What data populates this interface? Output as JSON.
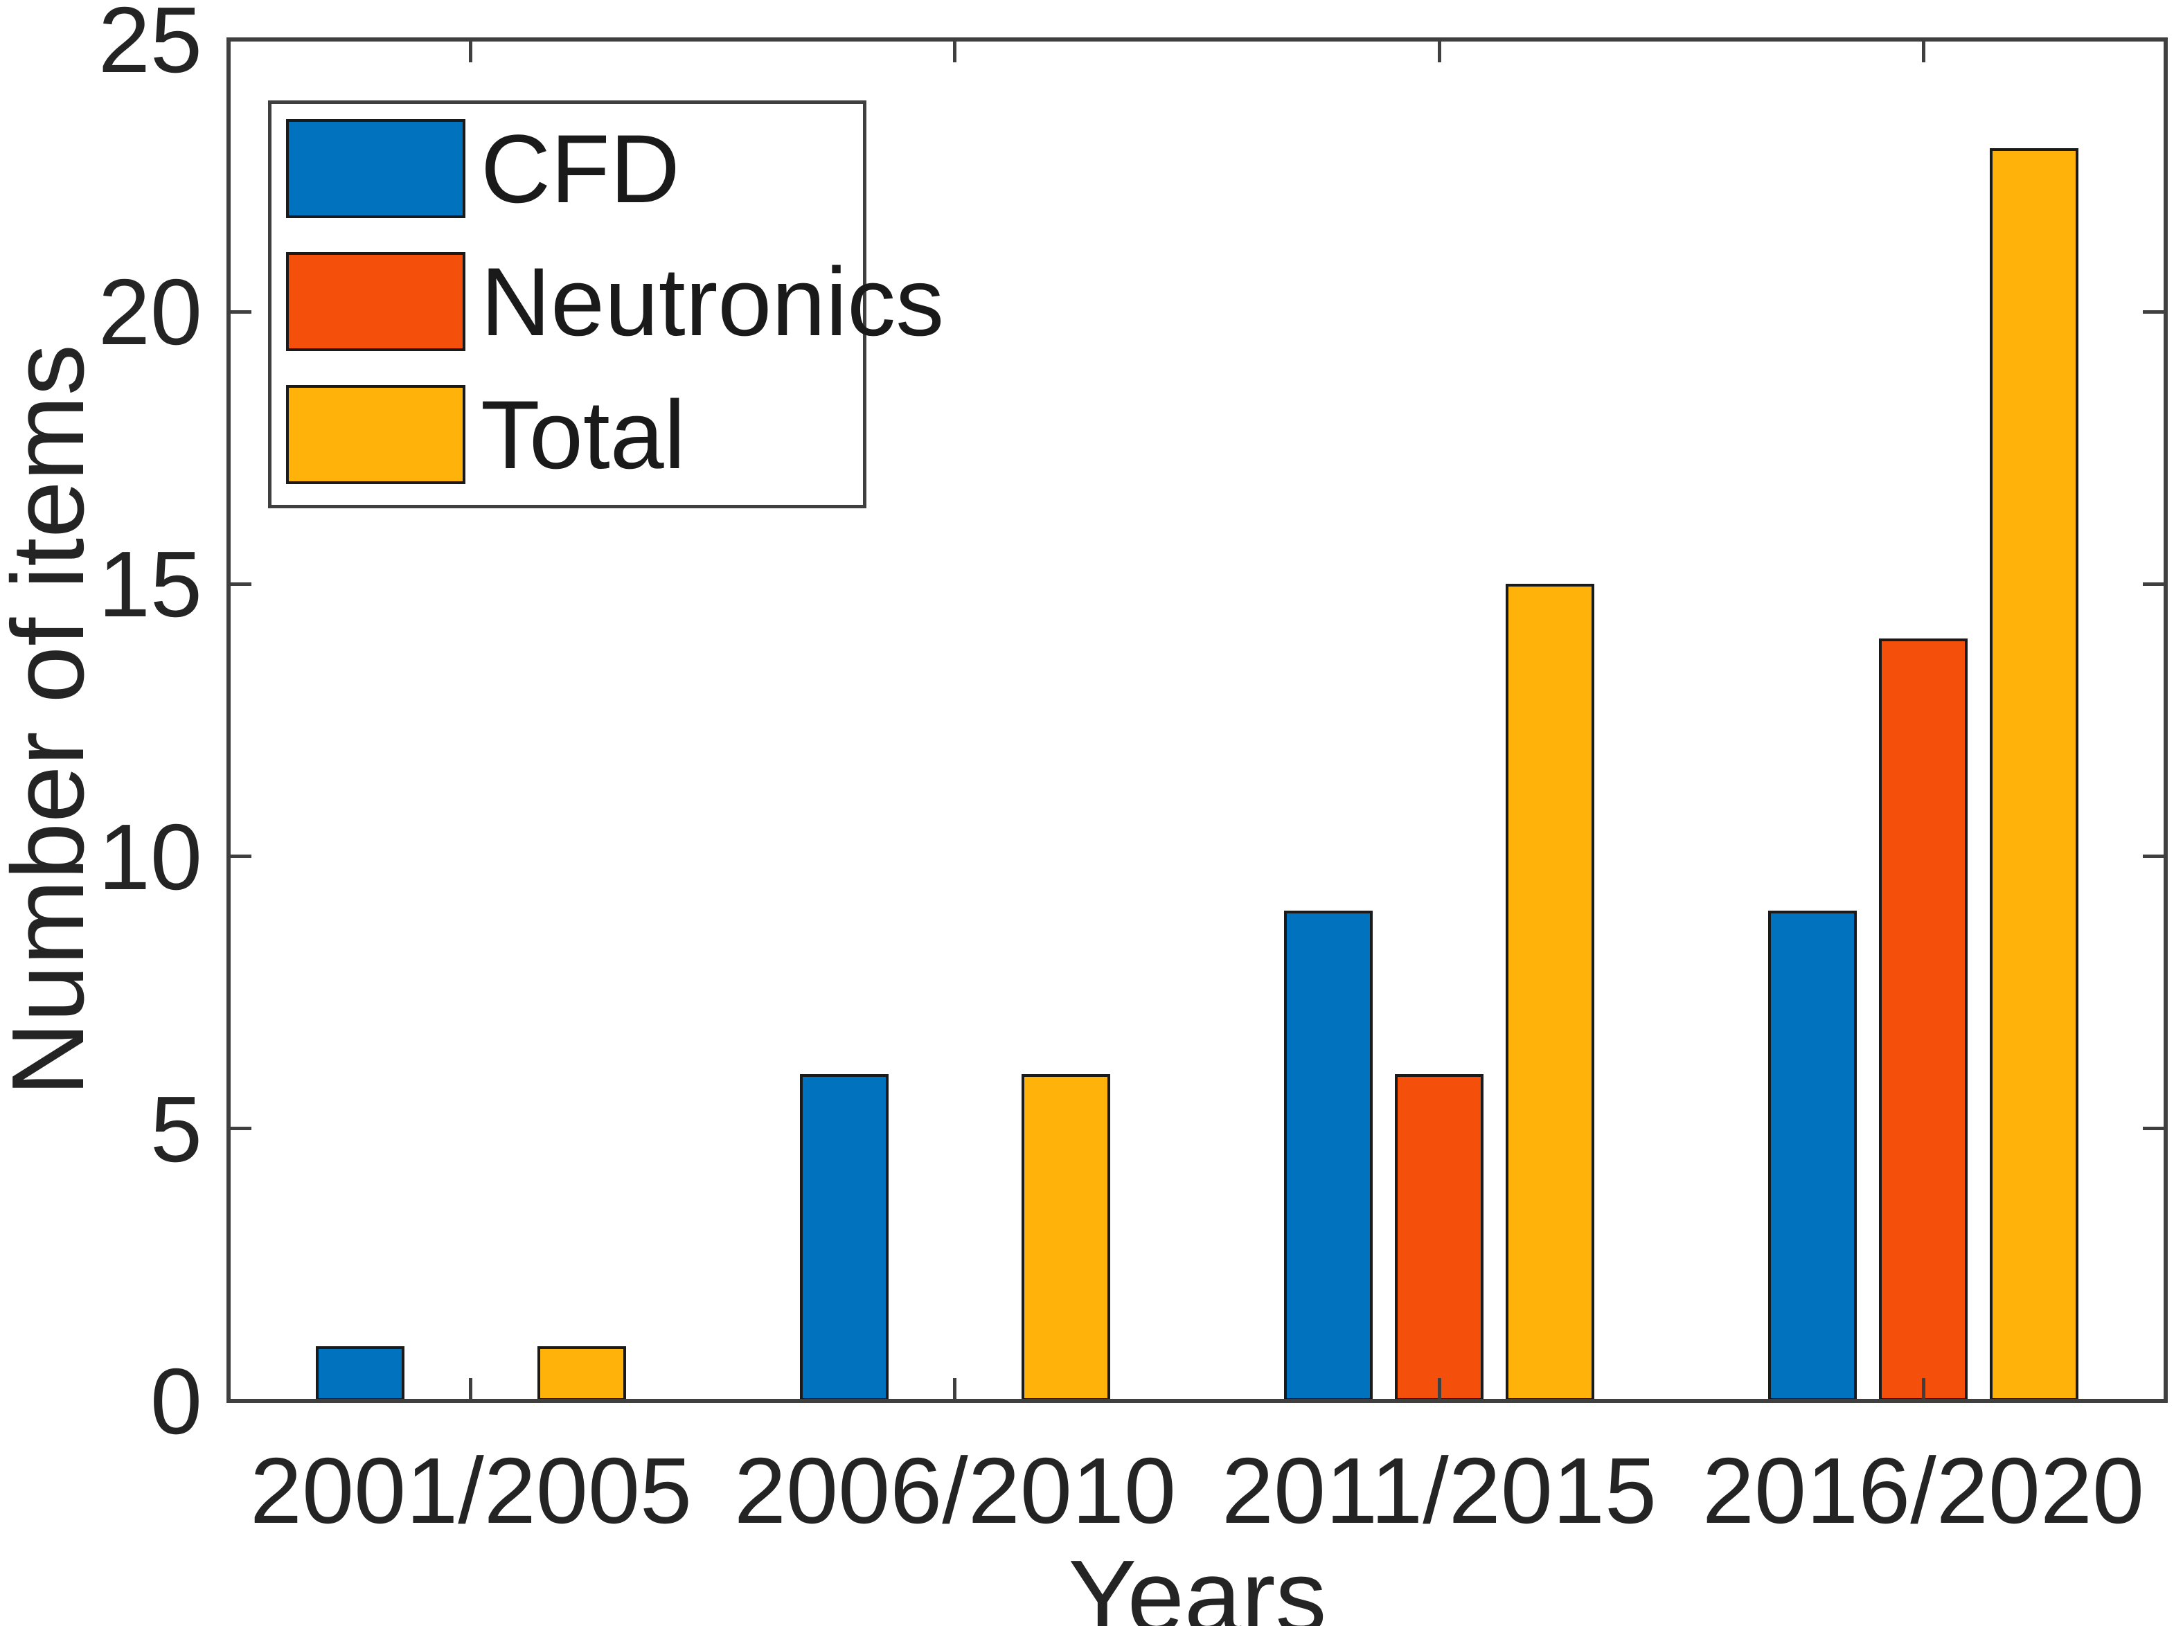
{
  "chart_data": {
    "type": "bar",
    "title": "",
    "categories": [
      "2001/2005",
      "2006/2010",
      "2011/2015",
      "2016/2020"
    ],
    "series": [
      {
        "name": "CFD",
        "color": "#0072BE",
        "values": [
          1,
          6,
          9,
          9
        ]
      },
      {
        "name": "Neutronics",
        "color": "#F4500C",
        "values": [
          0,
          0,
          6,
          14
        ]
      },
      {
        "name": "Total",
        "color": "#FFB30A",
        "values": [
          1,
          6,
          15,
          23
        ]
      }
    ],
    "xlabel": "Years",
    "ylabel": "Number of items",
    "ylim": [
      0,
      25
    ],
    "yticks": [
      0,
      5,
      10,
      15,
      20,
      25
    ],
    "grid": false,
    "legend_position": "top-left",
    "bar_edge_color": "#1a1a1a",
    "axis_color": "#3f3f3f",
    "text_color": "#242424"
  }
}
